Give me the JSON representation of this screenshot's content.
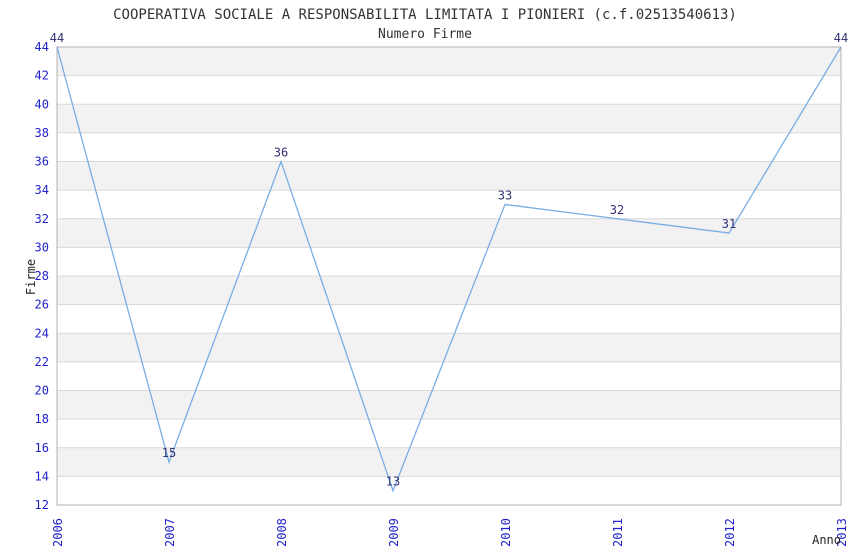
{
  "chart_data": {
    "type": "line",
    "title": "COOPERATIVA SOCIALE A RESPONSABILITA LIMITATA I PIONIERI (c.f.02513540613)",
    "subtitle": "Numero Firme",
    "xlabel": "Anno",
    "ylabel": "Firme",
    "x": [
      "2006",
      "2007",
      "2008",
      "2009",
      "2010",
      "2011",
      "2012",
      "2013"
    ],
    "values": [
      44,
      15,
      36,
      13,
      33,
      32,
      31,
      44
    ],
    "point_labels": [
      "44",
      "15",
      "36",
      "13",
      "33",
      "32",
      "31",
      "44"
    ],
    "ylim": [
      12,
      44
    ],
    "yticks": [
      12,
      14,
      16,
      18,
      20,
      22,
      24,
      26,
      28,
      30,
      32,
      34,
      36,
      38,
      40,
      42,
      44
    ],
    "grid": "horizontal",
    "alternating_bands": true,
    "legend_position": "none",
    "colors": {
      "line": "#79aee3",
      "tick_labels": "#2222cc",
      "point_labels": "#333377",
      "band": "#f2f2f2",
      "gridline": "#d9d9d9",
      "plot_border": "#b3b3b3",
      "title_text": "#333333",
      "axis_title_text": "#222222",
      "background": "#ffffff"
    }
  }
}
